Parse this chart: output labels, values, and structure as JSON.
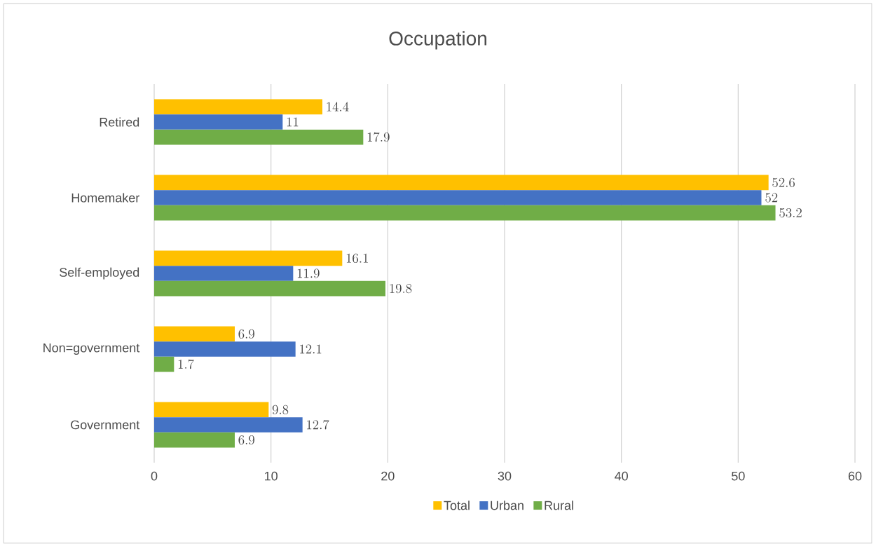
{
  "chart_data": {
    "type": "bar",
    "orientation": "horizontal",
    "title": "Occupation",
    "categories": [
      "Retired",
      "Homemaker",
      "Self-employed",
      "Non=government",
      "Government"
    ],
    "series": [
      {
        "name": "Total",
        "color": "#ffc000",
        "values": [
          14.4,
          52.6,
          16.1,
          6.9,
          9.8
        ]
      },
      {
        "name": "Urban",
        "color": "#4472c4",
        "values": [
          11,
          52,
          11.9,
          12.1,
          12.7
        ]
      },
      {
        "name": "Rural",
        "color": "#70ad47",
        "values": [
          17.9,
          53.2,
          19.8,
          1.7,
          6.9
        ]
      }
    ],
    "xlim": [
      0,
      60
    ],
    "xticks": [
      0,
      10,
      20,
      30,
      40,
      50,
      60
    ],
    "grid": "x",
    "legend": "bottom",
    "data_labels": true
  }
}
